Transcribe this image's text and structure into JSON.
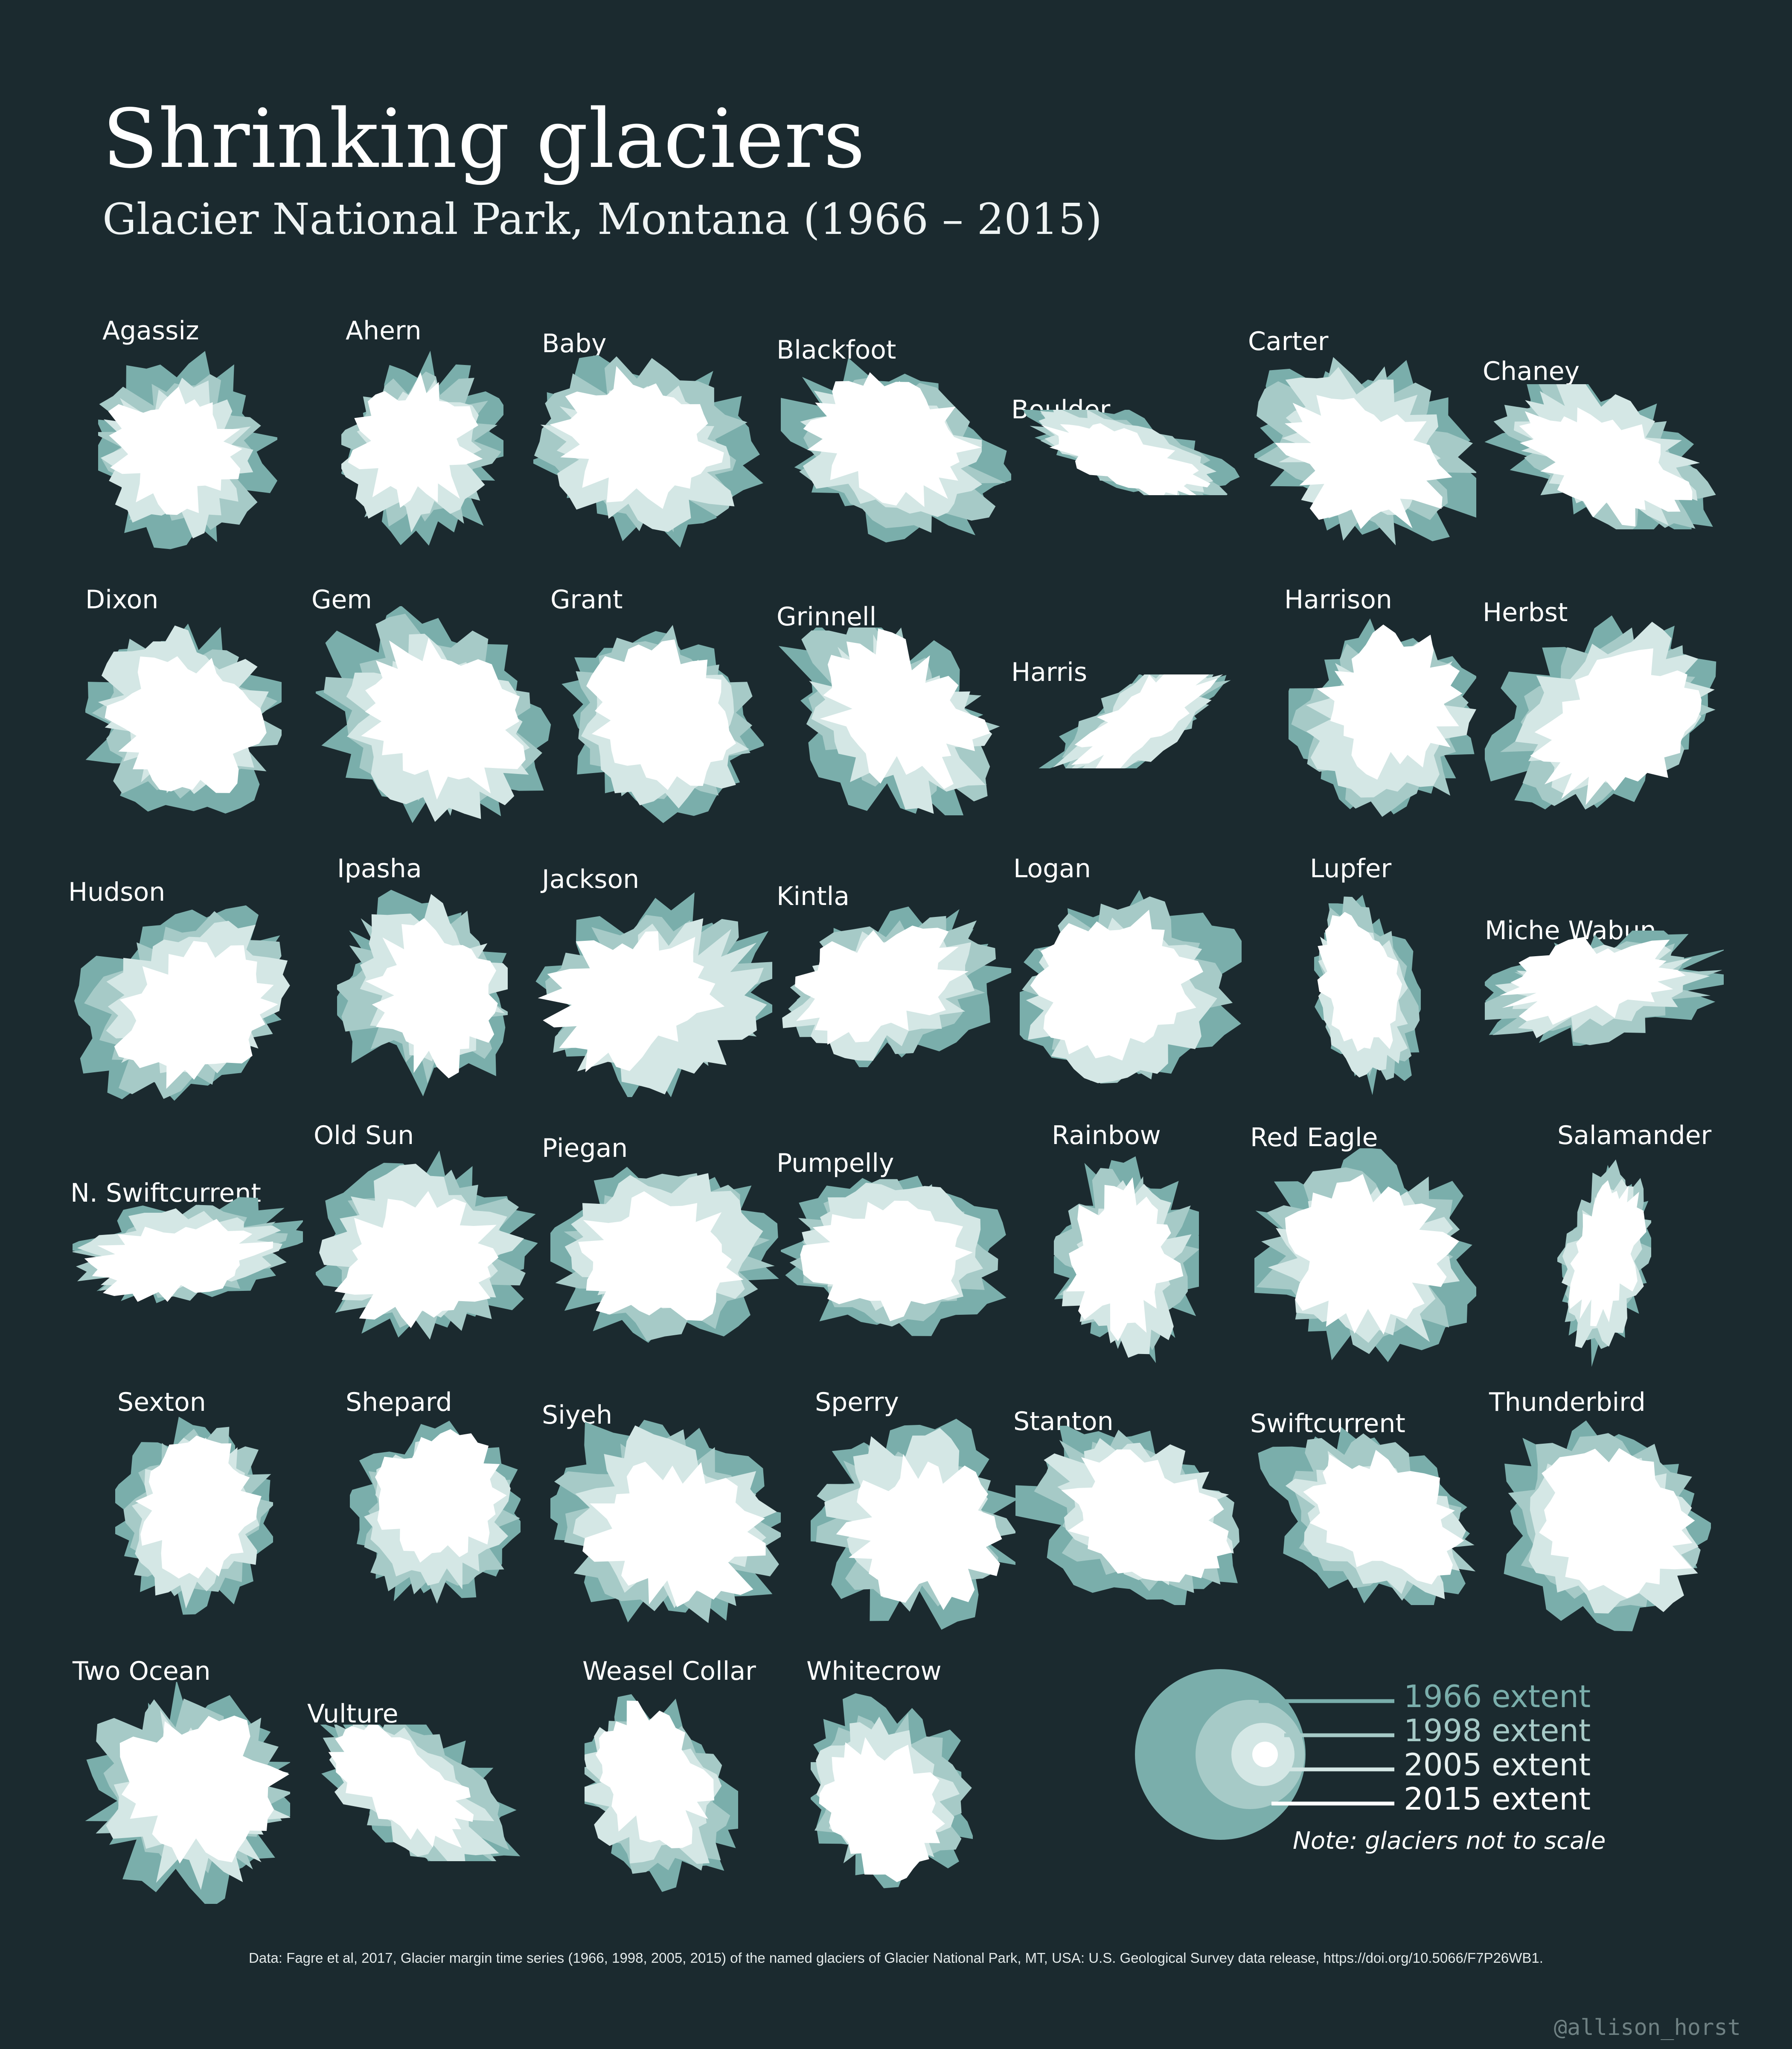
{
  "title": "Shrinking glaciers",
  "subtitle": "Glacier National Park, Montana (1966 – 2015)",
  "colors": {
    "background": "#1b2a2f",
    "extent_1966": "#7aaeab",
    "extent_1998": "#a6cac7",
    "extent_2005": "#d4e7e5",
    "extent_2015": "#ffffff"
  },
  "glaciers": [
    {
      "name": "Agassiz"
    },
    {
      "name": "Ahern"
    },
    {
      "name": "Baby"
    },
    {
      "name": "Blackfoot"
    },
    {
      "name": "Boulder"
    },
    {
      "name": "Carter"
    },
    {
      "name": "Chaney"
    },
    {
      "name": "Dixon"
    },
    {
      "name": "Gem"
    },
    {
      "name": "Grant"
    },
    {
      "name": "Grinnell"
    },
    {
      "name": "Harris"
    },
    {
      "name": "Harrison"
    },
    {
      "name": "Herbst"
    },
    {
      "name": "Hudson"
    },
    {
      "name": "Ipasha"
    },
    {
      "name": "Jackson"
    },
    {
      "name": "Kintla"
    },
    {
      "name": "Logan"
    },
    {
      "name": "Lupfer"
    },
    {
      "name": "Miche Wabun"
    },
    {
      "name": "N. Swiftcurrent"
    },
    {
      "name": "Old Sun"
    },
    {
      "name": "Piegan"
    },
    {
      "name": "Pumpelly"
    },
    {
      "name": "Rainbow"
    },
    {
      "name": "Red Eagle"
    },
    {
      "name": "Salamander"
    },
    {
      "name": "Sexton"
    },
    {
      "name": "Shepard"
    },
    {
      "name": "Siyeh"
    },
    {
      "name": "Sperry"
    },
    {
      "name": "Stanton"
    },
    {
      "name": "Swiftcurrent"
    },
    {
      "name": "Thunderbird"
    },
    {
      "name": "Two Ocean"
    },
    {
      "name": "Vulture"
    },
    {
      "name": "Weasel Collar"
    },
    {
      "name": "Whitecrow"
    }
  ],
  "legend": {
    "items": [
      {
        "label": "1966 extent"
      },
      {
        "label": "1998 extent"
      },
      {
        "label": "2005 extent"
      },
      {
        "label": "2015 extent"
      }
    ],
    "note": "Note: glaciers not to scale"
  },
  "source": "Data: Fagre et al, 2017, Glacier margin time series (1966, 1998, 2005, 2015) of the named glaciers of Glacier National Park, MT, USA: U.S. Geological Survey data release, https://doi.org/10.5066/F7P26WB1.",
  "credit": "@allison_horst"
}
